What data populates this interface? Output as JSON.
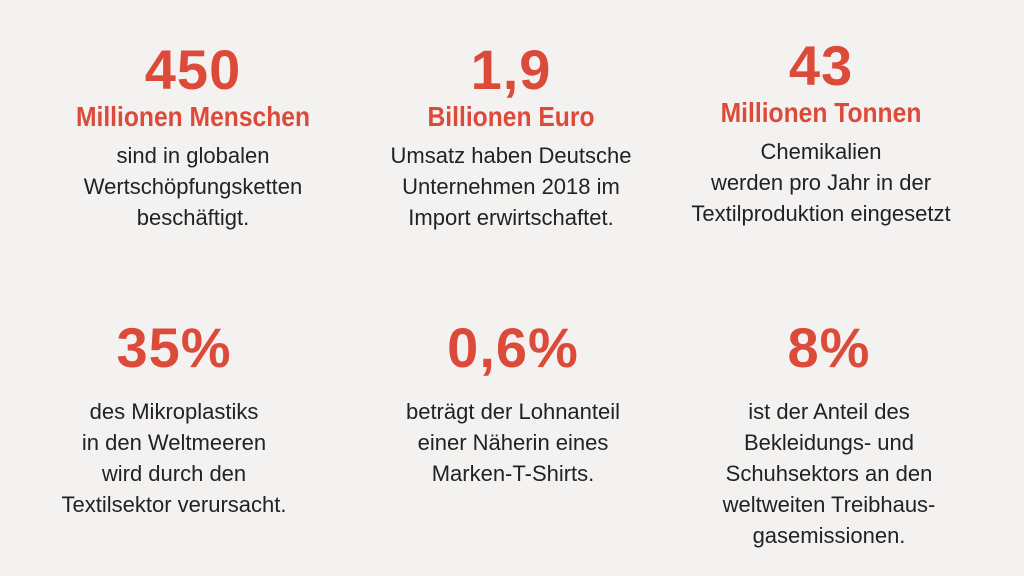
{
  "colors": {
    "accent": "#dc4a3a",
    "background": "#f4f2f1",
    "text": "#222222"
  },
  "stats": [
    {
      "number": "450",
      "unit": "Millionen Menschen",
      "lines": [
        "sind in globalen",
        "Wertschöpfungsketten",
        "beschäftigt."
      ]
    },
    {
      "number": "1,9",
      "unit": "Billionen Euro",
      "lines": [
        "Umsatz haben Deutsche",
        "Unternehmen 2018 im",
        "Import erwirtschaftet."
      ]
    },
    {
      "number": "43",
      "unit": "Millionen Tonnen",
      "lines": [
        "Chemikalien",
        "werden pro Jahr in der",
        "Textilproduktion eingesetzt"
      ]
    },
    {
      "number": "35%",
      "lines": [
        "des Mikroplastiks",
        "in den Weltmeeren",
        "wird durch den",
        "Textilsektor verursacht."
      ]
    },
    {
      "number": "0,6%",
      "lines": [
        "beträgt der Lohnanteil",
        "einer Näherin eines",
        "Marken-T-Shirts."
      ]
    },
    {
      "number": "8%",
      "lines": [
        "ist der Anteil des",
        "Bekleidungs- und",
        "Schuhsektors an den",
        "weltweiten Treibhaus-",
        "gasemissionen."
      ]
    }
  ]
}
